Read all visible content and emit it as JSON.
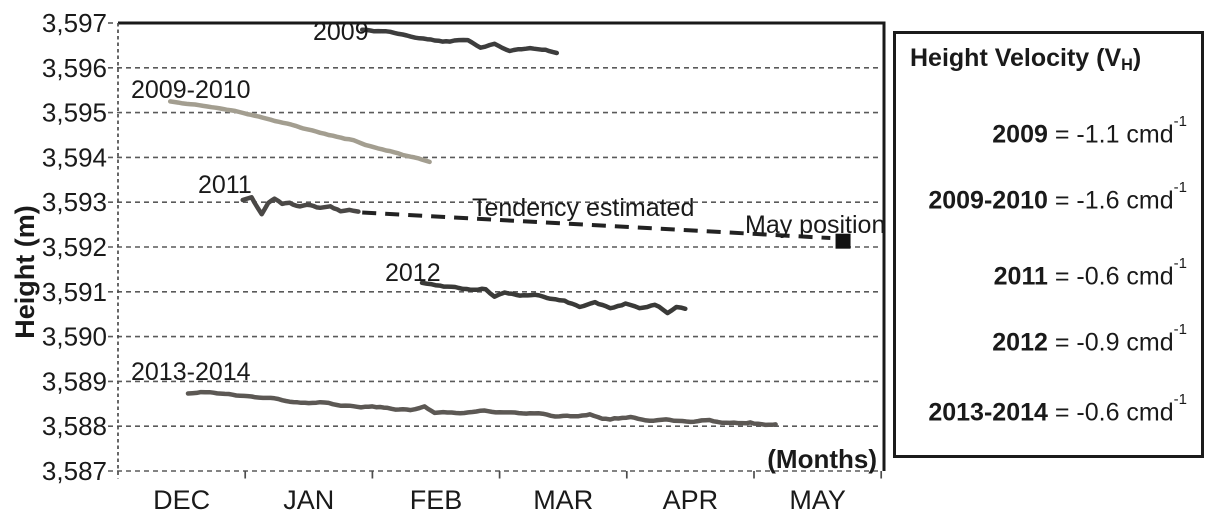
{
  "figure": {
    "background": "#ffffff"
  },
  "chart_data": {
    "type": "line",
    "title": "",
    "xlabel": "(Months)",
    "ylabel": "Height (m)",
    "x_categories": [
      "DEC",
      "JAN",
      "FEB",
      "MAR",
      "APR",
      "MAY"
    ],
    "y_ticks": [
      3587,
      3588,
      3589,
      3590,
      3591,
      3592,
      3593,
      3594,
      3595,
      3596,
      3597
    ],
    "ylim": [
      3587,
      3597
    ],
    "grid": "horizontal-dashed",
    "legend_position": "right-box",
    "series": [
      {
        "name": "2009",
        "color": "#3d3d3d",
        "points": [
          [
            1.42,
            3596.85
          ],
          [
            1.64,
            3596.8
          ],
          [
            1.87,
            3596.65
          ],
          [
            2.11,
            3596.58
          ],
          [
            2.25,
            3596.62
          ],
          [
            2.35,
            3596.45
          ],
          [
            2.46,
            3596.55
          ],
          [
            2.58,
            3596.38
          ],
          [
            2.74,
            3596.42
          ],
          [
            2.86,
            3596.4
          ],
          [
            2.95,
            3596.33
          ]
        ]
      },
      {
        "name": "2009-2010",
        "color": "#a39e90",
        "points": [
          [
            -0.09,
            3595.25
          ],
          [
            0.3,
            3595.1
          ],
          [
            0.7,
            3594.85
          ],
          [
            1.09,
            3594.55
          ],
          [
            1.32,
            3594.4
          ],
          [
            1.48,
            3594.25
          ],
          [
            1.64,
            3594.13
          ],
          [
            1.8,
            3594.02
          ],
          [
            1.95,
            3593.9
          ]
        ]
      },
      {
        "name": "2011",
        "color": "#4a4846",
        "points": [
          [
            0.48,
            3593.05
          ],
          [
            0.55,
            3593.1
          ],
          [
            0.6,
            3592.85
          ],
          [
            0.63,
            3592.72
          ],
          [
            0.68,
            3593.0
          ],
          [
            0.73,
            3593.08
          ],
          [
            0.79,
            3592.95
          ],
          [
            0.85,
            3593.0
          ],
          [
            0.93,
            3592.9
          ],
          [
            1.01,
            3592.95
          ],
          [
            1.09,
            3592.87
          ],
          [
            1.17,
            3592.9
          ],
          [
            1.25,
            3592.8
          ],
          [
            1.32,
            3592.84
          ],
          [
            1.39,
            3592.79
          ]
        ]
      },
      {
        "name": "2012",
        "color": "#3a3a38",
        "points": [
          [
            1.89,
            3591.2
          ],
          [
            2.03,
            3591.15
          ],
          [
            2.15,
            3591.1
          ],
          [
            2.27,
            3591.05
          ],
          [
            2.39,
            3591.05
          ],
          [
            2.46,
            3590.9
          ],
          [
            2.54,
            3590.97
          ],
          [
            2.66,
            3590.9
          ],
          [
            2.78,
            3590.92
          ],
          [
            2.9,
            3590.85
          ],
          [
            3.01,
            3590.8
          ],
          [
            3.13,
            3590.65
          ],
          [
            3.25,
            3590.78
          ],
          [
            3.37,
            3590.6
          ],
          [
            3.49,
            3590.72
          ],
          [
            3.6,
            3590.65
          ],
          [
            3.72,
            3590.7
          ],
          [
            3.82,
            3590.55
          ],
          [
            3.89,
            3590.68
          ],
          [
            3.96,
            3590.62
          ]
        ]
      },
      {
        "name": "2013-2014",
        "color": "#5c5854",
        "points": [
          [
            0.05,
            3588.73
          ],
          [
            0.22,
            3588.75
          ],
          [
            0.46,
            3588.68
          ],
          [
            0.7,
            3588.62
          ],
          [
            0.85,
            3588.55
          ],
          [
            1.09,
            3588.52
          ],
          [
            1.32,
            3588.45
          ],
          [
            1.56,
            3588.42
          ],
          [
            1.8,
            3588.35
          ],
          [
            1.91,
            3588.45
          ],
          [
            1.99,
            3588.3
          ],
          [
            2.19,
            3588.28
          ],
          [
            2.35,
            3588.35
          ],
          [
            2.5,
            3588.3
          ],
          [
            2.74,
            3588.28
          ],
          [
            2.97,
            3588.22
          ],
          [
            3.21,
            3588.25
          ],
          [
            3.37,
            3588.15
          ],
          [
            3.53,
            3588.2
          ],
          [
            3.68,
            3588.12
          ],
          [
            3.84,
            3588.15
          ],
          [
            4.0,
            3588.1
          ],
          [
            4.15,
            3588.12
          ],
          [
            4.31,
            3588.05
          ],
          [
            4.47,
            3588.08
          ],
          [
            4.59,
            3588.02
          ],
          [
            4.67,
            3588.04
          ]
        ]
      }
    ],
    "tendency": {
      "label": "Tendency estimated",
      "style": "dashed",
      "color": "#222222",
      "from": [
        1.42,
        3592.77
      ],
      "to": [
        5.1,
        3592.2
      ]
    },
    "may_marker": {
      "label": "May position",
      "shape": "square",
      "color": "#111111",
      "point": [
        5.2,
        3592.13
      ]
    }
  },
  "legend": {
    "title_prefix": "Height Velocity (V",
    "title_sub": "H",
    "title_suffix": ")",
    "entries": [
      {
        "label": "2009",
        "velocity": "-1.1",
        "unit": "cmd",
        "exponent": "-1"
      },
      {
        "label": "2009-2010",
        "velocity": "-1.6",
        "unit": "cmd",
        "exponent": "-1"
      },
      {
        "label": "2011",
        "velocity": "-0.6",
        "unit": "cmd",
        "exponent": "-1"
      },
      {
        "label": "2012",
        "velocity": "-0.9",
        "unit": "cmd",
        "exponent": "-1"
      },
      {
        "label": "2013-2014",
        "velocity": "-0.6",
        "unit": "cmd",
        "exponent": "-1"
      }
    ]
  }
}
